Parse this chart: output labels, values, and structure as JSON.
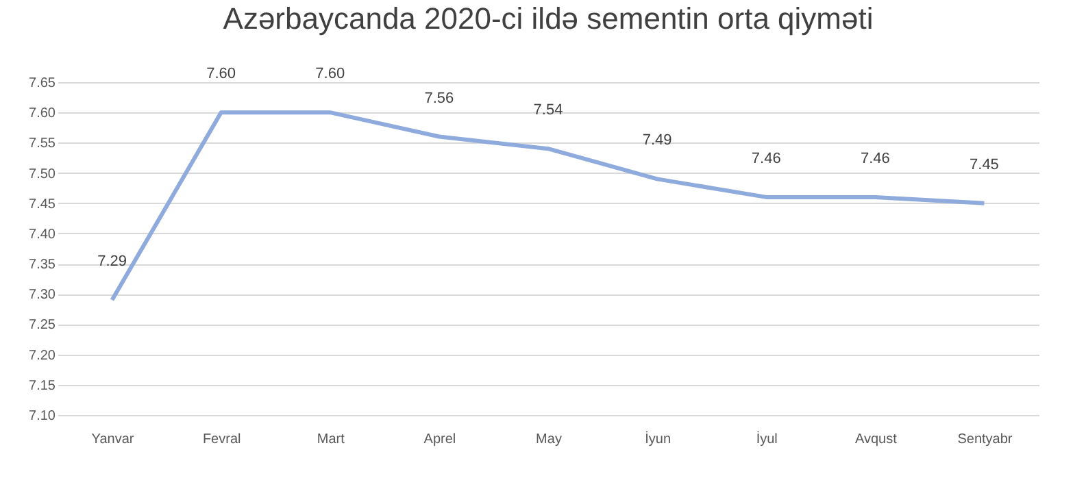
{
  "chart_data": {
    "type": "line",
    "title": "Azərbaycanda 2020-ci ildə sementin orta qiyməti",
    "categories": [
      "Yanvar",
      "Fevral",
      "Mart",
      "Aprel",
      "May",
      "İyun",
      "İyul",
      "Avqust",
      "Sentyabr"
    ],
    "series": [
      {
        "color": "#8faadc",
        "values": [
          7.29,
          7.6,
          7.6,
          7.56,
          7.54,
          7.49,
          7.46,
          7.46,
          7.45
        ]
      }
    ],
    "ylim": [
      7.1,
      7.65
    ],
    "yticks": [
      {
        "value": 7.1,
        "label": "7.10"
      },
      {
        "value": 7.15,
        "label": "7.15"
      },
      {
        "value": 7.2,
        "label": "7.20"
      },
      {
        "value": 7.25,
        "label": "7.25"
      },
      {
        "value": 7.3,
        "label": "7.30"
      },
      {
        "value": 7.35,
        "label": "7.35"
      },
      {
        "value": 7.4,
        "label": "7.40"
      },
      {
        "value": 7.45,
        "label": "7.45"
      },
      {
        "value": 7.5,
        "label": "7.50"
      },
      {
        "value": 7.55,
        "label": "7.55"
      },
      {
        "value": 7.6,
        "label": "7.60"
      },
      {
        "value": 7.65,
        "label": "7.65"
      }
    ],
    "value_labels": [
      "7.29",
      "7.60",
      "7.60",
      "7.56",
      "7.54",
      "7.49",
      "7.46",
      "7.46",
      "7.45"
    ],
    "grid": "y",
    "marker": "none",
    "line_style": "solid"
  }
}
